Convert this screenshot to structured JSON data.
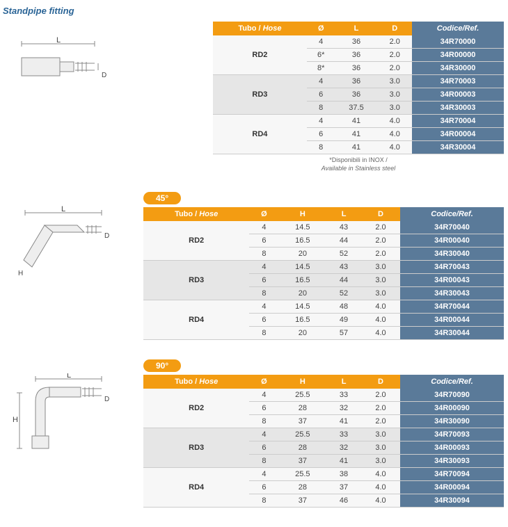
{
  "title": "Standpipe fitting",
  "colors": {
    "orange": "#f39c12",
    "steel": "#5a7a99",
    "row_light": "#f7f7f7",
    "row_dark": "#e6e6e6",
    "title_color": "#2a6496"
  },
  "headers": {
    "hose": "Tubo / Hose",
    "diam": "Ø",
    "H": "H",
    "L": "L",
    "D": "D",
    "ref": "Codice/Ref."
  },
  "footnote_line1": "*Disponibili in INOX /",
  "footnote_line2": "Available in Stainless steel",
  "tables": [
    {
      "angle_label": null,
      "columns": [
        "hose",
        "diam",
        "L",
        "D",
        "ref"
      ],
      "groups": [
        {
          "hose": "RD2",
          "rows": [
            [
              "4",
              "36",
              "2.0",
              "34R70000"
            ],
            [
              "6*",
              "36",
              "2.0",
              "34R00000"
            ],
            [
              "8*",
              "36",
              "2.0",
              "34R30000"
            ]
          ]
        },
        {
          "hose": "RD3",
          "rows": [
            [
              "4",
              "36",
              "3.0",
              "34R70003"
            ],
            [
              "6",
              "36",
              "3.0",
              "34R00003"
            ],
            [
              "8",
              "37.5",
              "3.0",
              "34R30003"
            ]
          ]
        },
        {
          "hose": "RD4",
          "rows": [
            [
              "4",
              "41",
              "4.0",
              "34R70004"
            ],
            [
              "6",
              "41",
              "4.0",
              "34R00004"
            ],
            [
              "8",
              "41",
              "4.0",
              "34R30004"
            ]
          ]
        }
      ],
      "has_footnote": true
    },
    {
      "angle_label": "45°",
      "columns": [
        "hose",
        "diam",
        "H",
        "L",
        "D",
        "ref"
      ],
      "groups": [
        {
          "hose": "RD2",
          "rows": [
            [
              "4",
              "14.5",
              "43",
              "2.0",
              "34R70040"
            ],
            [
              "6",
              "16.5",
              "44",
              "2.0",
              "34R00040"
            ],
            [
              "8",
              "20",
              "52",
              "2.0",
              "34R30040"
            ]
          ]
        },
        {
          "hose": "RD3",
          "rows": [
            [
              "4",
              "14.5",
              "43",
              "3.0",
              "34R70043"
            ],
            [
              "6",
              "16.5",
              "44",
              "3.0",
              "34R00043"
            ],
            [
              "8",
              "20",
              "52",
              "3.0",
              "34R30043"
            ]
          ]
        },
        {
          "hose": "RD4",
          "rows": [
            [
              "4",
              "14.5",
              "48",
              "4.0",
              "34R70044"
            ],
            [
              "6",
              "16.5",
              "49",
              "4.0",
              "34R00044"
            ],
            [
              "8",
              "20",
              "57",
              "4.0",
              "34R30044"
            ]
          ]
        }
      ],
      "has_footnote": false
    },
    {
      "angle_label": "90°",
      "columns": [
        "hose",
        "diam",
        "H",
        "L",
        "D",
        "ref"
      ],
      "groups": [
        {
          "hose": "RD2",
          "rows": [
            [
              "4",
              "25.5",
              "33",
              "2.0",
              "34R70090"
            ],
            [
              "6",
              "28",
              "32",
              "2.0",
              "34R00090"
            ],
            [
              "8",
              "37",
              "41",
              "2.0",
              "34R30090"
            ]
          ]
        },
        {
          "hose": "RD3",
          "rows": [
            [
              "4",
              "25.5",
              "33",
              "3.0",
              "34R70093"
            ],
            [
              "6",
              "28",
              "32",
              "3.0",
              "34R00093"
            ],
            [
              "8",
              "37",
              "41",
              "3.0",
              "34R30093"
            ]
          ]
        },
        {
          "hose": "RD4",
          "rows": [
            [
              "4",
              "25.5",
              "38",
              "4.0",
              "34R70094"
            ],
            [
              "6",
              "28",
              "37",
              "4.0",
              "34R00094"
            ],
            [
              "8",
              "37",
              "46",
              "4.0",
              "34R30094"
            ]
          ]
        }
      ],
      "has_footnote": false
    }
  ],
  "diagrams": {
    "straight": {
      "labels": [
        "L",
        "D"
      ]
    },
    "d45": {
      "labels": [
        "L",
        "D",
        "H"
      ]
    },
    "d90": {
      "labels": [
        "L",
        "D",
        "H"
      ]
    }
  }
}
